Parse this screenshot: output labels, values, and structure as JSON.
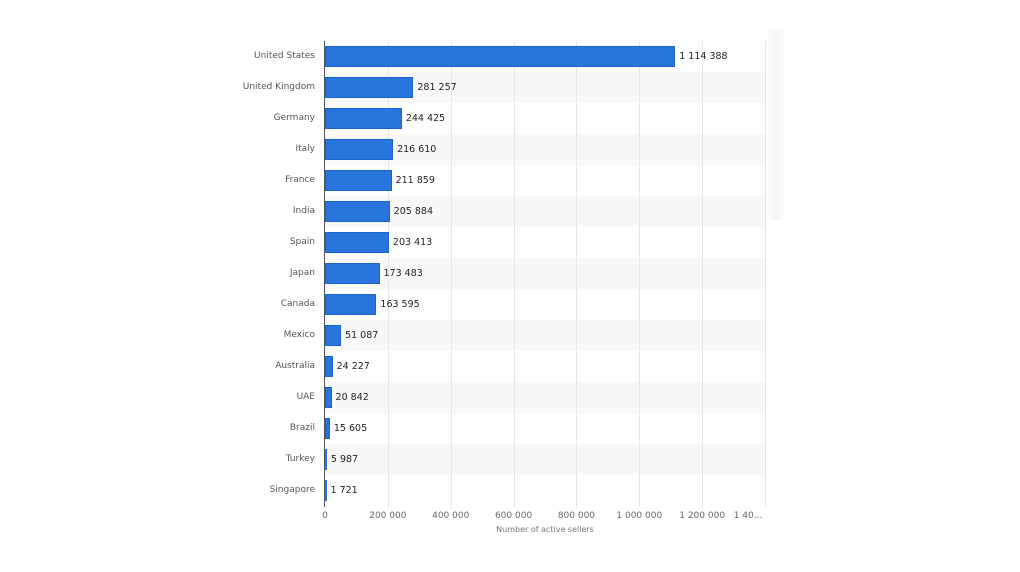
{
  "chart_data": {
    "type": "bar",
    "orientation": "horizontal",
    "title": "",
    "xlabel": "Number of active sellers",
    "ylabel": "",
    "xlim": [
      0,
      1400000
    ],
    "grid": true,
    "legend": null,
    "bar_color": "#2876dd",
    "categories": [
      "United States",
      "United Kingdom",
      "Germany",
      "Italy",
      "France",
      "India",
      "Spain",
      "Japan",
      "Canada",
      "Mexico",
      "Australia",
      "UAE",
      "Brazil",
      "Turkey",
      "Singapore"
    ],
    "values": [
      1114388,
      281257,
      244425,
      216610,
      211859,
      205884,
      203413,
      173483,
      163595,
      51087,
      24227,
      20842,
      15605,
      5987,
      1721
    ],
    "value_labels": [
      "1 114 388",
      "281 257",
      "244 425",
      "216 610",
      "211 859",
      "205 884",
      "203 413",
      "173 483",
      "163 595",
      "51 087",
      "24 227",
      "20 842",
      "15 605",
      "5 987",
      "1 721"
    ],
    "x_ticks": [
      0,
      200000,
      400000,
      600000,
      800000,
      1000000,
      1200000,
      1400000
    ],
    "x_tick_labels": [
      "0",
      "200 000",
      "400 000",
      "600 000",
      "800 000",
      "1 000 000",
      "1 200 000",
      "1 40..."
    ]
  }
}
